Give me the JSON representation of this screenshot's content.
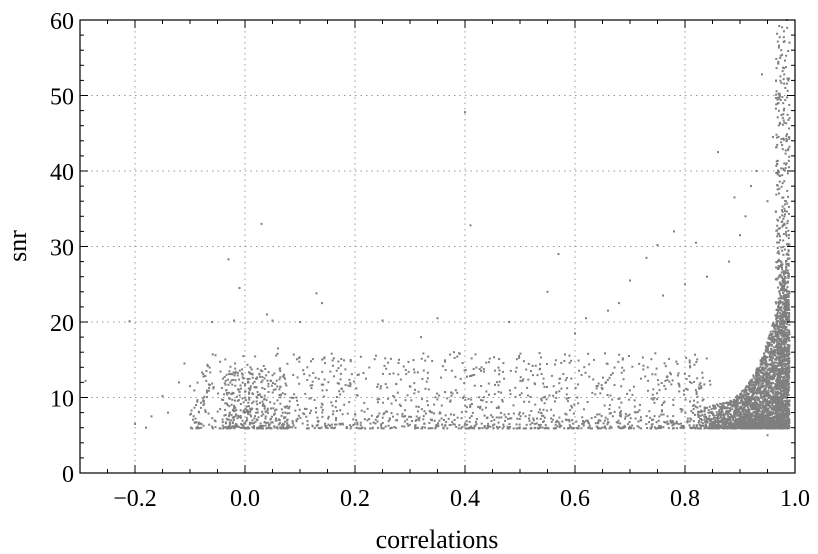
{
  "chart_data": {
    "type": "scatter",
    "xlabel": "correlations",
    "ylabel": "snr",
    "xlim": [
      -0.3,
      1.0
    ],
    "ylim": [
      0,
      60
    ],
    "x_major_ticks": [
      -0.2,
      0.0,
      0.2,
      0.4,
      0.6,
      0.8,
      1.0
    ],
    "x_tick_labels": [
      "−0.2",
      "0.0",
      "0.2",
      "0.4",
      "0.6",
      "0.8",
      "1.0"
    ],
    "y_major_ticks": [
      0,
      10,
      20,
      30,
      40,
      50,
      60
    ],
    "y_tick_labels": [
      "0",
      "10",
      "20",
      "30",
      "40",
      "50",
      "60"
    ],
    "grid": true,
    "point_color": "#7f7f7f",
    "series": [
      {
        "points": [
          [
            -0.29,
            12.2
          ],
          [
            -0.21,
            20.1
          ],
          [
            -0.2,
            6.5
          ],
          [
            -0.18,
            6.0
          ],
          [
            -0.17,
            7.5
          ],
          [
            -0.15,
            10.2
          ],
          [
            -0.14,
            8.0
          ],
          [
            -0.12,
            12.0
          ],
          [
            -0.11,
            14.5
          ],
          [
            -0.1,
            11.5
          ],
          [
            -0.09,
            7.2
          ],
          [
            -0.07,
            13.5
          ],
          [
            -0.06,
            20.0
          ],
          [
            -0.04,
            12.5
          ],
          [
            -0.03,
            28.3
          ],
          [
            -0.02,
            20.2
          ],
          [
            -0.01,
            24.5
          ],
          [
            0.01,
            14.0
          ],
          [
            0.02,
            12.5
          ],
          [
            0.03,
            33.0
          ],
          [
            0.04,
            21.0
          ],
          [
            0.05,
            20.2
          ],
          [
            0.06,
            16.5
          ],
          [
            0.1,
            20.0
          ],
          [
            0.12,
            14.8
          ],
          [
            0.13,
            23.8
          ],
          [
            0.14,
            22.5
          ],
          [
            0.16,
            14.2
          ],
          [
            0.22,
            12.5
          ],
          [
            0.25,
            20.2
          ],
          [
            0.28,
            15.0
          ],
          [
            0.32,
            18.0
          ],
          [
            0.35,
            20.5
          ],
          [
            0.38,
            16.0
          ],
          [
            0.4,
            47.8
          ],
          [
            0.41,
            32.8
          ],
          [
            0.43,
            14.0
          ],
          [
            0.48,
            20.0
          ],
          [
            0.52,
            13.5
          ],
          [
            0.55,
            24.0
          ],
          [
            0.57,
            29.0
          ],
          [
            0.6,
            18.5
          ],
          [
            0.62,
            20.5
          ],
          [
            0.66,
            21.5
          ],
          [
            0.68,
            22.5
          ],
          [
            0.7,
            25.5
          ],
          [
            0.73,
            28.5
          ],
          [
            0.75,
            30.2
          ],
          [
            0.76,
            23.5
          ],
          [
            0.78,
            32.0
          ],
          [
            0.8,
            25.0
          ],
          [
            0.82,
            30.5
          ],
          [
            0.84,
            26.0
          ],
          [
            0.86,
            42.5
          ],
          [
            0.88,
            28.0
          ],
          [
            0.89,
            36.5
          ],
          [
            0.9,
            31.5
          ],
          [
            0.91,
            34.0
          ],
          [
            0.92,
            38.0
          ],
          [
            0.93,
            40.0
          ],
          [
            0.94,
            52.8
          ],
          [
            0.95,
            36.0
          ],
          [
            0.95,
            5.0
          ],
          [
            0.96,
            44.5
          ],
          [
            0.97,
            49.0
          ],
          [
            0.975,
            56.0
          ],
          [
            0.98,
            58.5
          ],
          [
            0.985,
            60.0
          ],
          [
            0.99,
            57.0
          ],
          [
            0.99,
            47.0
          ]
        ]
      }
    ]
  }
}
